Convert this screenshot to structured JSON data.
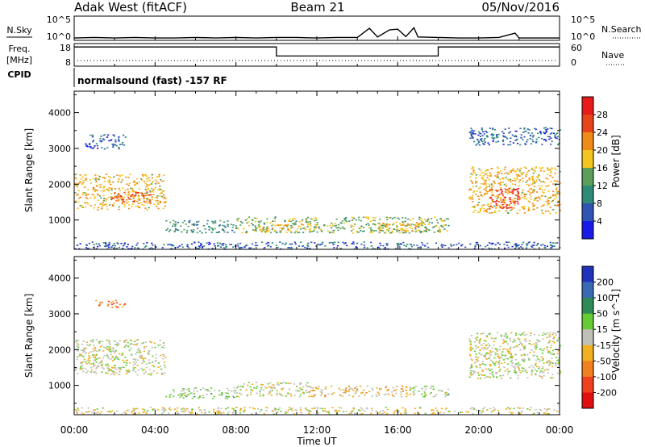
{
  "header": {
    "station": "Adak West (fitACF)",
    "beam": "Beam 21",
    "date": "05/Nov/2016"
  },
  "sky_panel": {
    "left_label": "N.Sky",
    "right_label": "N.Search",
    "ytick_top": "10^5",
    "ytick_bottom": "10^0"
  },
  "freq_panel": {
    "left_label_1": "Freq.",
    "left_label_2": "[MHz]",
    "right_label": "Nave",
    "left_ticks": [
      "18",
      "8"
    ],
    "right_ticks": [
      "60",
      "0"
    ],
    "cpid_label": "CPID",
    "cpid_text": "normalsound (fast) -157 RF"
  },
  "time_axis": {
    "label": "Time UT",
    "ticks": [
      "00:00",
      "04:00",
      "08:00",
      "12:00",
      "16:00",
      "20:00",
      "00:00"
    ]
  },
  "power_panel": {
    "ylabel": "Slant Range [km]",
    "yticks": [
      "4000",
      "3000",
      "2000",
      "1000"
    ],
    "colorbar_label": "Power [dB]",
    "colorbar_ticks": [
      "28",
      "24",
      "20",
      "16",
      "12",
      "8",
      "4"
    ],
    "colorbar_colors": [
      "#1a1ae6",
      "#2f55b4",
      "#2e8b7a",
      "#5aa05a",
      "#f4c420",
      "#f08a18",
      "#e8441a",
      "#e81a1a"
    ]
  },
  "velocity_panel": {
    "ylabel": "Slant Range [km]",
    "yticks": [
      "4000",
      "3000",
      "2000",
      "1000"
    ],
    "colorbar_label": "Velocity [m s^-1]",
    "colorbar_ticks": [
      "200",
      "100",
      "50",
      "15",
      "-15",
      "-50",
      "-100",
      "-200"
    ],
    "colorbar_colors": [
      "#2233bb",
      "#3a6ab4",
      "#2e8b57",
      "#66cc33",
      "#c0c0b8",
      "#f0b020",
      "#f08020",
      "#f04020",
      "#e01010"
    ]
  },
  "chart_data": [
    {
      "type": "line",
      "name": "sky_noise_panel",
      "x_unit": "hours UT",
      "xlim": [
        0,
        24
      ],
      "yscale": "log",
      "ylim": [
        1,
        100000
      ],
      "series": [
        {
          "x": [
            0,
            1,
            2,
            3,
            4,
            5,
            6,
            7,
            8,
            9,
            10,
            11,
            12,
            13,
            14,
            14.6,
            15,
            15.6,
            16,
            16.4,
            16.8,
            17,
            18,
            19,
            20,
            21,
            21.8,
            22,
            23,
            24
          ],
          "y": [
            3,
            4,
            3,
            4,
            3,
            3,
            4,
            3,
            4,
            3,
            4,
            4,
            3,
            4,
            4,
            300,
            5,
            150,
            200,
            6,
            400,
            5,
            4,
            3,
            3,
            4,
            30,
            3,
            3,
            3
          ]
        }
      ]
    },
    {
      "type": "line",
      "name": "frequency_panel",
      "x_unit": "hours UT",
      "xlim": [
        0,
        24
      ],
      "ylim": [
        8,
        18
      ],
      "series": [
        {
          "x": [
            0,
            10,
            10,
            18,
            18,
            24
          ],
          "y": [
            16.5,
            16.5,
            12.5,
            12.5,
            16.5,
            16.5
          ]
        }
      ]
    },
    {
      "type": "heatmap",
      "name": "power_panel",
      "x_unit": "hours UT",
      "y_unit": "km",
      "xlim": [
        0,
        24
      ],
      "ylim": [
        180,
        4600
      ],
      "z_range": [
        0,
        30
      ],
      "regions": [
        {
          "t": [
            0,
            4.5
          ],
          "r": [
            1300,
            2300
          ],
          "z": 18
        },
        {
          "t": [
            1.8,
            3.8
          ],
          "r": [
            1500,
            1800
          ],
          "z": 24
        },
        {
          "t": [
            0.5,
            2.5
          ],
          "r": [
            3000,
            3400
          ],
          "z": 6
        },
        {
          "t": [
            4.5,
            8
          ],
          "r": [
            650,
            1000
          ],
          "z": 10
        },
        {
          "t": [
            8,
            18.5
          ],
          "r": [
            650,
            1100
          ],
          "z": 14
        },
        {
          "t": [
            9,
            12
          ],
          "r": [
            700,
            900
          ],
          "z": 18
        },
        {
          "t": [
            15,
            17.5
          ],
          "r": [
            700,
            950
          ],
          "z": 18
        },
        {
          "t": [
            19.5,
            24
          ],
          "r": [
            1200,
            2500
          ],
          "z": 18
        },
        {
          "t": [
            20.5,
            22
          ],
          "r": [
            1300,
            1900
          ],
          "z": 26
        },
        {
          "t": [
            19.5,
            24
          ],
          "r": [
            3100,
            3600
          ],
          "z": 6
        },
        {
          "t": [
            0,
            24
          ],
          "r": [
            200,
            400
          ],
          "z": 6
        }
      ]
    },
    {
      "type": "heatmap",
      "name": "velocity_panel",
      "x_unit": "hours UT",
      "y_unit": "km",
      "xlim": [
        0,
        24
      ],
      "ylim": [
        180,
        4600
      ],
      "z_range": [
        -250,
        250
      ],
      "regions": [
        {
          "t": [
            0,
            4.5
          ],
          "r": [
            1300,
            2300
          ],
          "z": 0
        },
        {
          "t": [
            1,
            2.5
          ],
          "r": [
            3200,
            3400
          ],
          "z": -120
        },
        {
          "t": [
            4.5,
            8
          ],
          "r": [
            650,
            950
          ],
          "z": 30
        },
        {
          "t": [
            8,
            11.5
          ],
          "r": [
            700,
            1100
          ],
          "z": 0
        },
        {
          "t": [
            11.5,
            16.5
          ],
          "r": [
            700,
            1000
          ],
          "z": -40
        },
        {
          "t": [
            16.5,
            18.5
          ],
          "r": [
            700,
            1000
          ],
          "z": 30
        },
        {
          "t": [
            19.5,
            24
          ],
          "r": [
            1200,
            2500
          ],
          "z": 0
        },
        {
          "t": [
            0,
            24
          ],
          "r": [
            200,
            400
          ],
          "z": -20
        }
      ]
    }
  ]
}
